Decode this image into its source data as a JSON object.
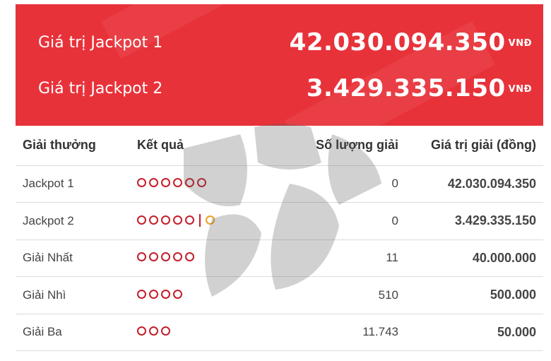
{
  "banner": {
    "jackpot1": {
      "label": "Giá trị Jackpot 1",
      "amount": "42.030.094.350",
      "unit": "VNĐ"
    },
    "jackpot2": {
      "label": "Giá trị Jackpot 2",
      "amount": "3.429.335.150",
      "unit": "VNĐ"
    }
  },
  "colors": {
    "banner": "#e8323a",
    "ball": "#c41e2a",
    "special_ball": "#f0a020",
    "value_text": "#c41e2a"
  },
  "table": {
    "headers": {
      "prize": "Giải thưởng",
      "result": "Kết quả",
      "count": "Số lượng giải",
      "value": "Giá trị giải (đồng)"
    },
    "rows": [
      {
        "prize": "Jackpot 1",
        "balls": 6,
        "special": false,
        "count": "0",
        "value": "42.030.094.350"
      },
      {
        "prize": "Jackpot 2",
        "balls": 5,
        "special": true,
        "count": "0",
        "value": "3.429.335.150"
      },
      {
        "prize": "Giải Nhất",
        "balls": 5,
        "special": false,
        "count": "11",
        "value": "40.000.000"
      },
      {
        "prize": "Giải Nhì",
        "balls": 4,
        "special": false,
        "count": "510",
        "value": "500.000"
      },
      {
        "prize": "Giải Ba",
        "balls": 3,
        "special": false,
        "count": "11.743",
        "value": "50.000"
      }
    ]
  }
}
